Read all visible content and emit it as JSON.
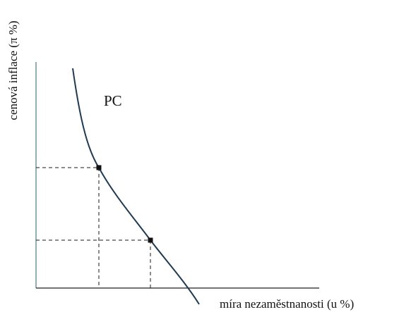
{
  "diagram": {
    "curve_label": "PC",
    "y_axis_label": "cenová inflace (π %)",
    "x_axis_label": "míra nezaměstnanosti (u %)",
    "colors": {
      "curve": "#1f3b52",
      "y_axis": "#4a7a8c",
      "x_axis": "#1f1f1f"
    }
  }
}
